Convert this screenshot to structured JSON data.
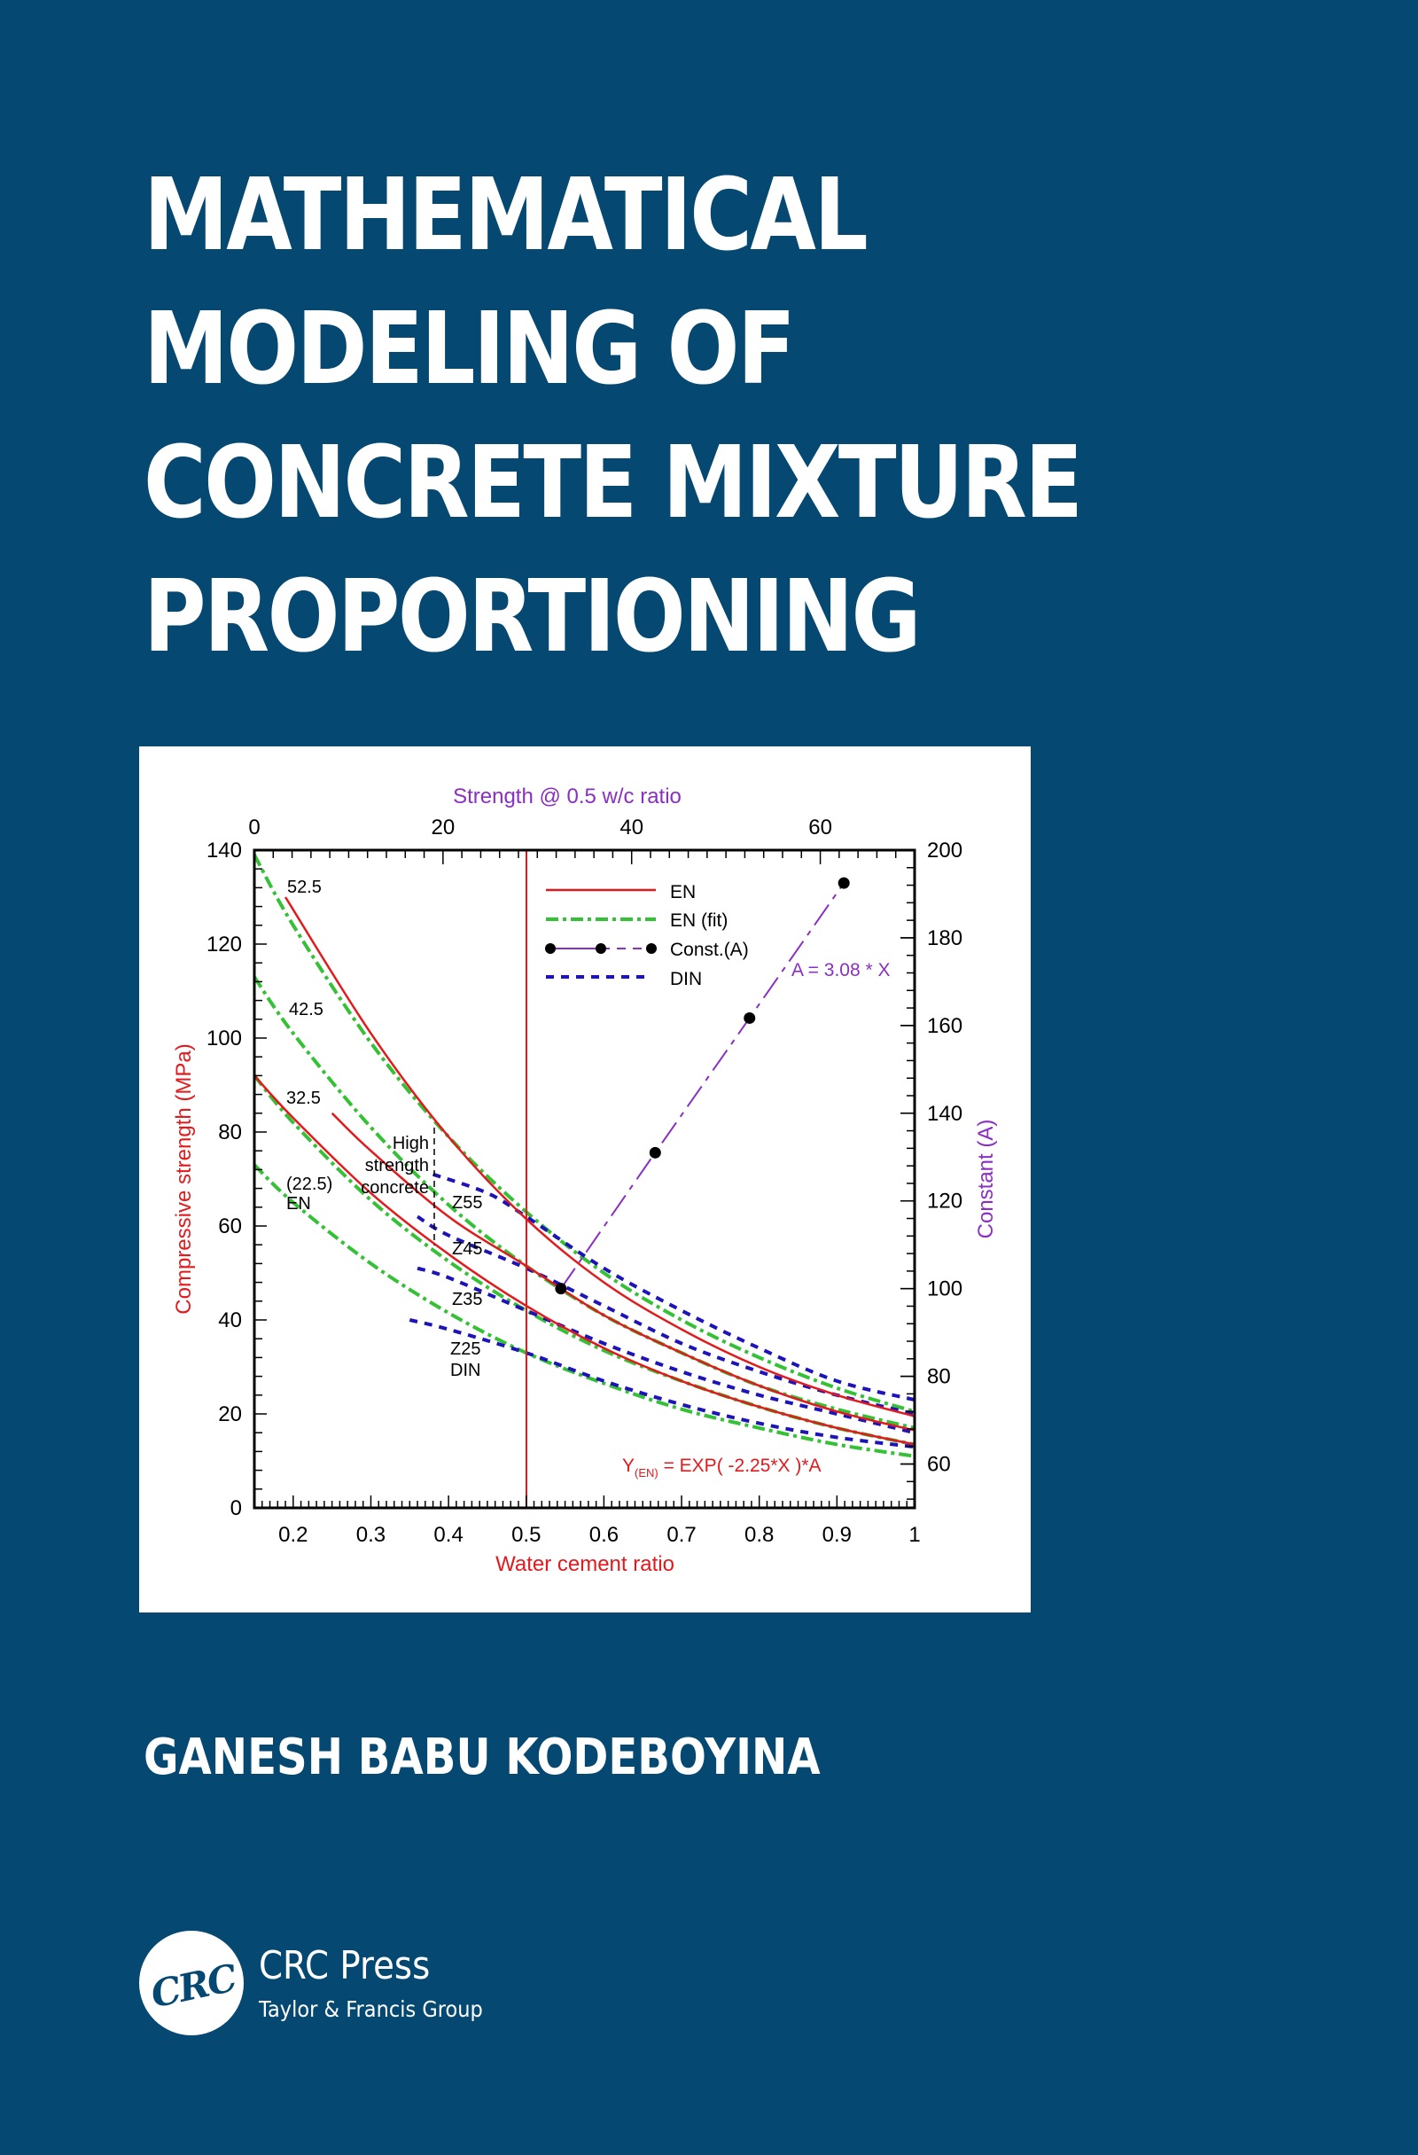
{
  "cover": {
    "background_color": "#054872",
    "title_lines": [
      "MATHEMATICAL",
      "MODELING OF",
      "CONCRETE MIXTURE",
      "PROPORTIONING"
    ],
    "author": "GANESH BABU KODEBOYINA",
    "publisher": {
      "logo_text": "CRC",
      "name": "CRC Press",
      "subtitle": "Taylor & Francis Group"
    }
  },
  "chart_data": {
    "type": "line",
    "title": "",
    "xlabel": "Water cement ratio",
    "ylabel": "Compressive strength (MPa)",
    "x2label": "Strength @ 0.5 w/c ratio",
    "y2label": "Constant (A)",
    "xlim": [
      0.15,
      1.0
    ],
    "ylim": [
      0,
      140
    ],
    "x2lim": [
      0,
      70
    ],
    "y2lim": [
      50,
      200
    ],
    "xticks": [
      "0.2",
      "0.3",
      "0.4",
      "0.5",
      "0.6",
      "0.7",
      "0.8",
      "0.9",
      "1"
    ],
    "yticks": [
      "0",
      "20",
      "40",
      "60",
      "80",
      "100",
      "120",
      "140"
    ],
    "x2ticks": [
      "0",
      "20",
      "40",
      "60"
    ],
    "y2ticks": [
      "60",
      "80",
      "100",
      "120",
      "140",
      "160",
      "180",
      "200"
    ],
    "legend": [
      "EN",
      "EN (fit)",
      "Const.(A)",
      "DIN"
    ],
    "legend_position": "upper center",
    "grid": false,
    "colors": {
      "EN": "#e3191c",
      "EN_fit": "#35c135",
      "Const": "#8a2fc4",
      "DIN": "#1c13b8",
      "axis_left_label": "#e3191c",
      "axis_right_label": "#8a2fc4"
    },
    "annotations": {
      "class_labels": [
        "52.5",
        "42.5",
        "32.5",
        "(22.5)",
        "EN"
      ],
      "din_labels": [
        "Z55",
        "Z45",
        "Z35",
        "Z25",
        "DIN"
      ],
      "high_strength": [
        "High",
        "strength",
        "concrete"
      ],
      "const_eq": "A = 3.08 * X",
      "en_eq_prefix": "Y",
      "en_eq_sub": "(EN)",
      "en_eq_rest": " = EXP( -2.25*X )*A",
      "vertical_line_x": 0.5,
      "high_strength_line_x": 0.38
    },
    "series": [
      {
        "name": "EN 52.5",
        "style": "EN",
        "x": [
          0.19,
          0.3,
          0.4,
          0.5,
          0.6,
          0.7,
          0.8,
          0.9,
          1.0
        ],
        "y": [
          130,
          101,
          79,
          61.5,
          48,
          38,
          30,
          24,
          19.5
        ]
      },
      {
        "name": "EN 42.5",
        "style": "EN",
        "x": [
          0.25,
          0.3,
          0.4,
          0.5,
          0.6,
          0.7,
          0.8,
          0.9,
          1.0
        ],
        "y": [
          84,
          76,
          62,
          51.5,
          41,
          33,
          26,
          20.5,
          16.5
        ]
      },
      {
        "name": "EN 32.5",
        "style": "EN",
        "x": [
          0.15,
          0.2,
          0.3,
          0.4,
          0.5,
          0.6,
          0.7,
          0.8,
          0.9,
          1.0
        ],
        "y": [
          92,
          83,
          67,
          54,
          43,
          34,
          27,
          21.5,
          17,
          13.5
        ]
      },
      {
        "name": "EN (fit) 52.5",
        "style": "EN_fit",
        "x": [
          0.15,
          0.2,
          0.3,
          0.4,
          0.5,
          0.6,
          0.7,
          0.8,
          0.9,
          1.0
        ],
        "y": [
          139,
          124,
          99,
          79,
          63,
          50,
          40,
          32,
          25.5,
          20.5
        ]
      },
      {
        "name": "EN (fit) 42.5",
        "style": "EN_fit",
        "x": [
          0.15,
          0.2,
          0.3,
          0.4,
          0.5,
          0.6,
          0.7,
          0.8,
          0.9,
          1.0
        ],
        "y": [
          113,
          101,
          81,
          64.5,
          51.5,
          41,
          33,
          26,
          21,
          17
        ]
      },
      {
        "name": "EN (fit) 32.5",
        "style": "EN_fit",
        "x": [
          0.15,
          0.2,
          0.3,
          0.4,
          0.5,
          0.6,
          0.7,
          0.8,
          0.9,
          1.0
        ],
        "y": [
          92,
          82,
          65.5,
          52.5,
          42,
          33.5,
          27,
          21.5,
          17,
          13.5
        ]
      },
      {
        "name": "EN (fit) 22.5",
        "style": "EN_fit",
        "x": [
          0.15,
          0.2,
          0.3,
          0.4,
          0.5,
          0.6,
          0.7,
          0.8,
          0.9,
          1.0
        ],
        "y": [
          73,
          65,
          52,
          41.5,
          33,
          26.5,
          21,
          17,
          13.5,
          11
        ]
      },
      {
        "name": "DIN Z55",
        "style": "DIN",
        "x": [
          0.38,
          0.45,
          0.5,
          0.6,
          0.7,
          0.8,
          0.9,
          1.0
        ],
        "y": [
          71,
          67,
          62,
          51,
          42,
          34,
          27,
          23
        ]
      },
      {
        "name": "DIN Z45",
        "style": "DIN",
        "x": [
          0.36,
          0.4,
          0.5,
          0.6,
          0.7,
          0.8,
          0.9,
          1.0
        ],
        "y": [
          62,
          58,
          51,
          43,
          35,
          29,
          24,
          20
        ]
      },
      {
        "name": "DIN Z35",
        "style": "DIN",
        "x": [
          0.36,
          0.4,
          0.5,
          0.6,
          0.7,
          0.8,
          0.9,
          1.0
        ],
        "y": [
          51,
          49,
          42,
          35,
          29,
          24,
          20,
          16
        ]
      },
      {
        "name": "DIN Z25",
        "style": "DIN",
        "x": [
          0.35,
          0.4,
          0.5,
          0.6,
          0.7,
          0.8,
          0.9,
          1.0
        ],
        "y": [
          40,
          38,
          33,
          27,
          22,
          18,
          15,
          13
        ]
      },
      {
        "name": "Const.(A)",
        "style": "Const",
        "axes": "top-right",
        "x": [
          32.5,
          42.5,
          52.5,
          62.5
        ],
        "y": [
          100,
          131,
          161.7,
          192.5
        ]
      }
    ]
  }
}
